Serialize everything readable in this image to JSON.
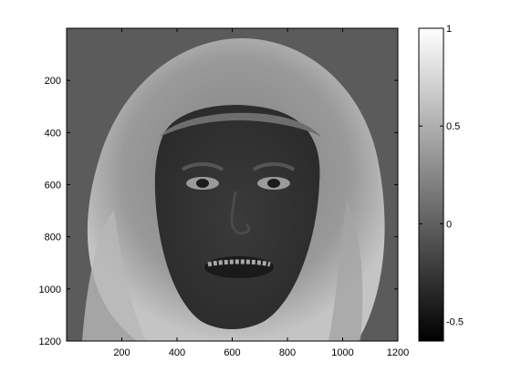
{
  "chart_data": {
    "type": "heatmap",
    "title": "",
    "xlabel": "",
    "ylabel": "",
    "image_extent": {
      "x": [
        0,
        1200
      ],
      "y": [
        0,
        1200
      ]
    },
    "y_axis_direction": "reversed",
    "x_ticks": [
      200,
      400,
      600,
      800,
      1000,
      1200
    ],
    "y_ticks": [
      200,
      400,
      600,
      800,
      1000,
      1200
    ],
    "colormap": "gray",
    "colorbar": {
      "range": [
        -0.6,
        1.0
      ],
      "ticks": [
        1,
        0.5,
        0,
        -0.5
      ],
      "tick_labels": [
        "1",
        "0.5",
        "0",
        "-0.5"
      ]
    },
    "grid": false,
    "content": "grayscale reconstruction of a face with a headscarf"
  }
}
